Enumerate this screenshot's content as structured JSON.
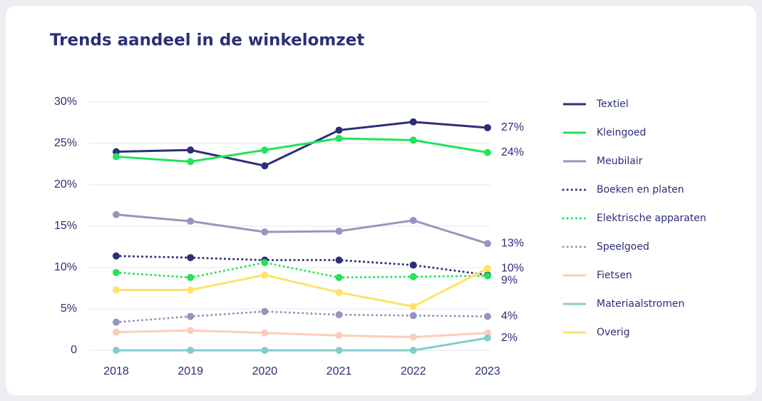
{
  "chart_data": {
    "type": "line",
    "title": "Trends aandeel in de winkelomzet",
    "categories": [
      "2018",
      "2019",
      "2020",
      "2021",
      "2022",
      "2023"
    ],
    "ylim": [
      0,
      30
    ],
    "yticks": [
      0,
      {
        "value": 5,
        "label": "5%"
      },
      {
        "value": 10,
        "label": "10%"
      },
      {
        "value": 15,
        "label": "15%"
      },
      {
        "value": 20,
        "label": "20%"
      },
      {
        "value": 25,
        "label": "25%"
      },
      {
        "value": 30,
        "label": "30%"
      }
    ],
    "grid": true,
    "legend": "right",
    "series": [
      {
        "name": "Textiel",
        "color": "#2b2f77",
        "style": "solid",
        "values": [
          24.0,
          24.2,
          22.3,
          26.6,
          27.6,
          26.9
        ],
        "value_labels": [
          null,
          null,
          null,
          null,
          null,
          "27%"
        ]
      },
      {
        "name": "Kleingoed",
        "color": "#22e35a",
        "style": "solid",
        "values": [
          23.4,
          22.8,
          24.2,
          25.6,
          25.4,
          23.9
        ],
        "value_labels": [
          null,
          null,
          null,
          null,
          null,
          "24%"
        ]
      },
      {
        "name": "Meubilair",
        "color": "#9497bd",
        "style": "solid",
        "values": [
          16.4,
          15.6,
          14.3,
          14.4,
          15.7,
          12.9
        ],
        "value_labels": [
          null,
          null,
          null,
          null,
          null,
          "13%"
        ]
      },
      {
        "name": "Boeken en platen",
        "color": "#2b2f77",
        "style": "dotted",
        "values": [
          11.4,
          11.2,
          10.9,
          10.9,
          10.3,
          9.1
        ],
        "value_labels": [
          null,
          null,
          null,
          null,
          null,
          "9%"
        ]
      },
      {
        "name": "Elektrische apparaten",
        "color": "#22e35a",
        "style": "dotted",
        "values": [
          9.4,
          8.8,
          10.6,
          8.8,
          8.9,
          9.0
        ]
      },
      {
        "name": "Speelgoed",
        "color": "#9497bd",
        "style": "dotted",
        "values": [
          3.4,
          4.1,
          4.7,
          4.3,
          4.2,
          4.1
        ],
        "value_labels": [
          null,
          null,
          null,
          null,
          null,
          "4%"
        ]
      },
      {
        "name": "Fietsen",
        "color": "#fbcdb9",
        "style": "solid",
        "values": [
          2.2,
          2.4,
          2.1,
          1.8,
          1.6,
          2.1
        ]
      },
      {
        "name": "Materiaalstromen",
        "color": "#86cccc",
        "style": "solid",
        "values": [
          0,
          0,
          0,
          0,
          0,
          1.5
        ],
        "value_labels": [
          null,
          null,
          null,
          null,
          null,
          "2%"
        ]
      },
      {
        "name": "Overig",
        "color": "#fde36a",
        "style": "solid",
        "values": [
          7.3,
          7.3,
          9.1,
          7.0,
          5.3,
          9.9
        ],
        "value_labels": [
          null,
          null,
          null,
          null,
          null,
          "10%"
        ]
      }
    ]
  }
}
